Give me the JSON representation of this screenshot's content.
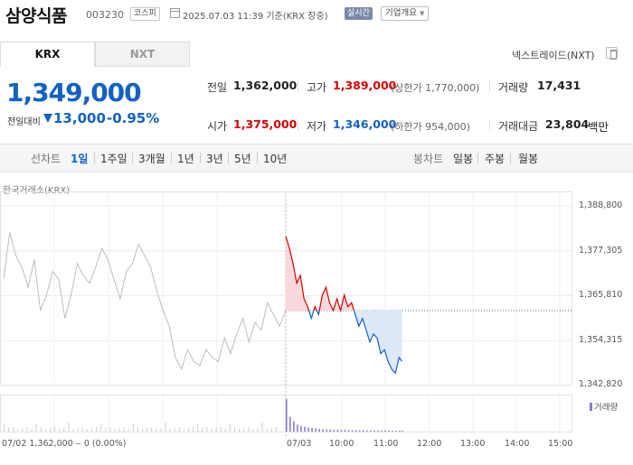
{
  "header": {
    "stock_name": "삼양식품",
    "stock_code": "003230",
    "market": "코스피",
    "datetime": "2025.07.03 11:39 기준(KRX 장중)",
    "realtime": "실시간",
    "overview_button": "기업개요"
  },
  "tabs": {
    "krx": "KRX",
    "nxt": "NXT"
  },
  "nxt_trade": "넥스트레이드(NXT)",
  "price": {
    "current": "1,349,000",
    "change_label": "전일대비",
    "change_amount": "13,000",
    "change_percent": "-0.95%"
  },
  "stats": {
    "prev_close_label": "전일",
    "prev_close": "1,362,000",
    "high_label": "고가",
    "high": "1,389,000",
    "upper_limit": "(상한가 1,770,000)",
    "volume_label": "거래량",
    "volume": "17,431",
    "open_label": "시가",
    "open": "1,375,000",
    "low_label": "저가",
    "low": "1,346,000",
    "lower_limit": "(하한가 954,000)",
    "amount_label": "거래대금",
    "amount": "23,804",
    "amount_unit": "백만"
  },
  "toolbar": {
    "line_label": "선차트",
    "periods": [
      "1일",
      "1주일",
      "3개월",
      "1년",
      "3년",
      "5년",
      "10년"
    ],
    "candle_label": "봉차트",
    "candles": [
      "일봉",
      "주봉",
      "월봉"
    ]
  },
  "chart_caption": "한국거래소(KRX)",
  "colors": {
    "up": "#d60000",
    "down": "#1261c4",
    "prev_day_line": "#bdbdbd",
    "volume": "#8a7ad0"
  },
  "chart_data": {
    "type": "line",
    "y_ticks": [
      "1,388,800",
      "1,377,305",
      "1,365,810",
      "1,354,315",
      "1,342,820"
    ],
    "ylim": [
      1342820,
      1388800
    ],
    "reference_price": 1362000,
    "x_ticks": [
      "07/03",
      "10:00",
      "11:00",
      "12:00",
      "13:00",
      "14:00",
      "15:00"
    ],
    "prev_day_label": "07/02",
    "prev_day_series": [
      1370000,
      1382000,
      1376000,
      1373000,
      1368000,
      1375000,
      1362000,
      1366000,
      1372000,
      1370000,
      1360000,
      1366000,
      1374000,
      1371000,
      1369000,
      1373000,
      1378000,
      1375000,
      1370000,
      1365000,
      1372000,
      1374000,
      1379000,
      1376000,
      1373000,
      1367000,
      1362000,
      1358000,
      1350000,
      1347000,
      1352000,
      1349000,
      1348000,
      1352000,
      1350000,
      1349000,
      1355000,
      1351000,
      1356000,
      1360000,
      1354000,
      1359000,
      1357000,
      1364000,
      1361000,
      1358000,
      1362000
    ],
    "intraday_times": [
      "09:00",
      "09:05",
      "09:10",
      "09:15",
      "09:20",
      "09:25",
      "09:30",
      "09:35",
      "09:40",
      "09:45",
      "09:50",
      "09:55",
      "10:00",
      "10:05",
      "10:10",
      "10:15",
      "10:20",
      "10:25",
      "10:30",
      "10:35",
      "10:40",
      "10:45",
      "10:50",
      "10:55",
      "11:00",
      "11:05",
      "11:10",
      "11:15",
      "11:20",
      "11:25",
      "11:30",
      "11:35",
      "11:39"
    ],
    "intraday_series": [
      1381000,
      1378000,
      1374000,
      1369000,
      1371000,
      1365000,
      1363000,
      1360000,
      1363000,
      1361000,
      1366000,
      1368000,
      1364000,
      1362000,
      1365000,
      1362000,
      1366000,
      1363000,
      1364000,
      1361000,
      1358000,
      1360000,
      1357000,
      1354000,
      1356000,
      1355000,
      1351000,
      1352000,
      1349000,
      1347000,
      1346000,
      1350000,
      1349000
    ],
    "volume_series": [
      4200,
      1900,
      1300,
      900,
      750,
      620,
      520,
      460,
      380,
      330,
      300,
      280,
      260,
      240,
      230,
      210,
      220,
      200,
      190,
      180,
      170,
      180,
      160,
      150,
      150,
      140,
      130,
      150,
      140,
      120,
      130,
      120,
      110
    ],
    "volume_legend": "거래량",
    "footer_text": "07/02   1,362,000 ‒ 0 (0.00%)"
  }
}
